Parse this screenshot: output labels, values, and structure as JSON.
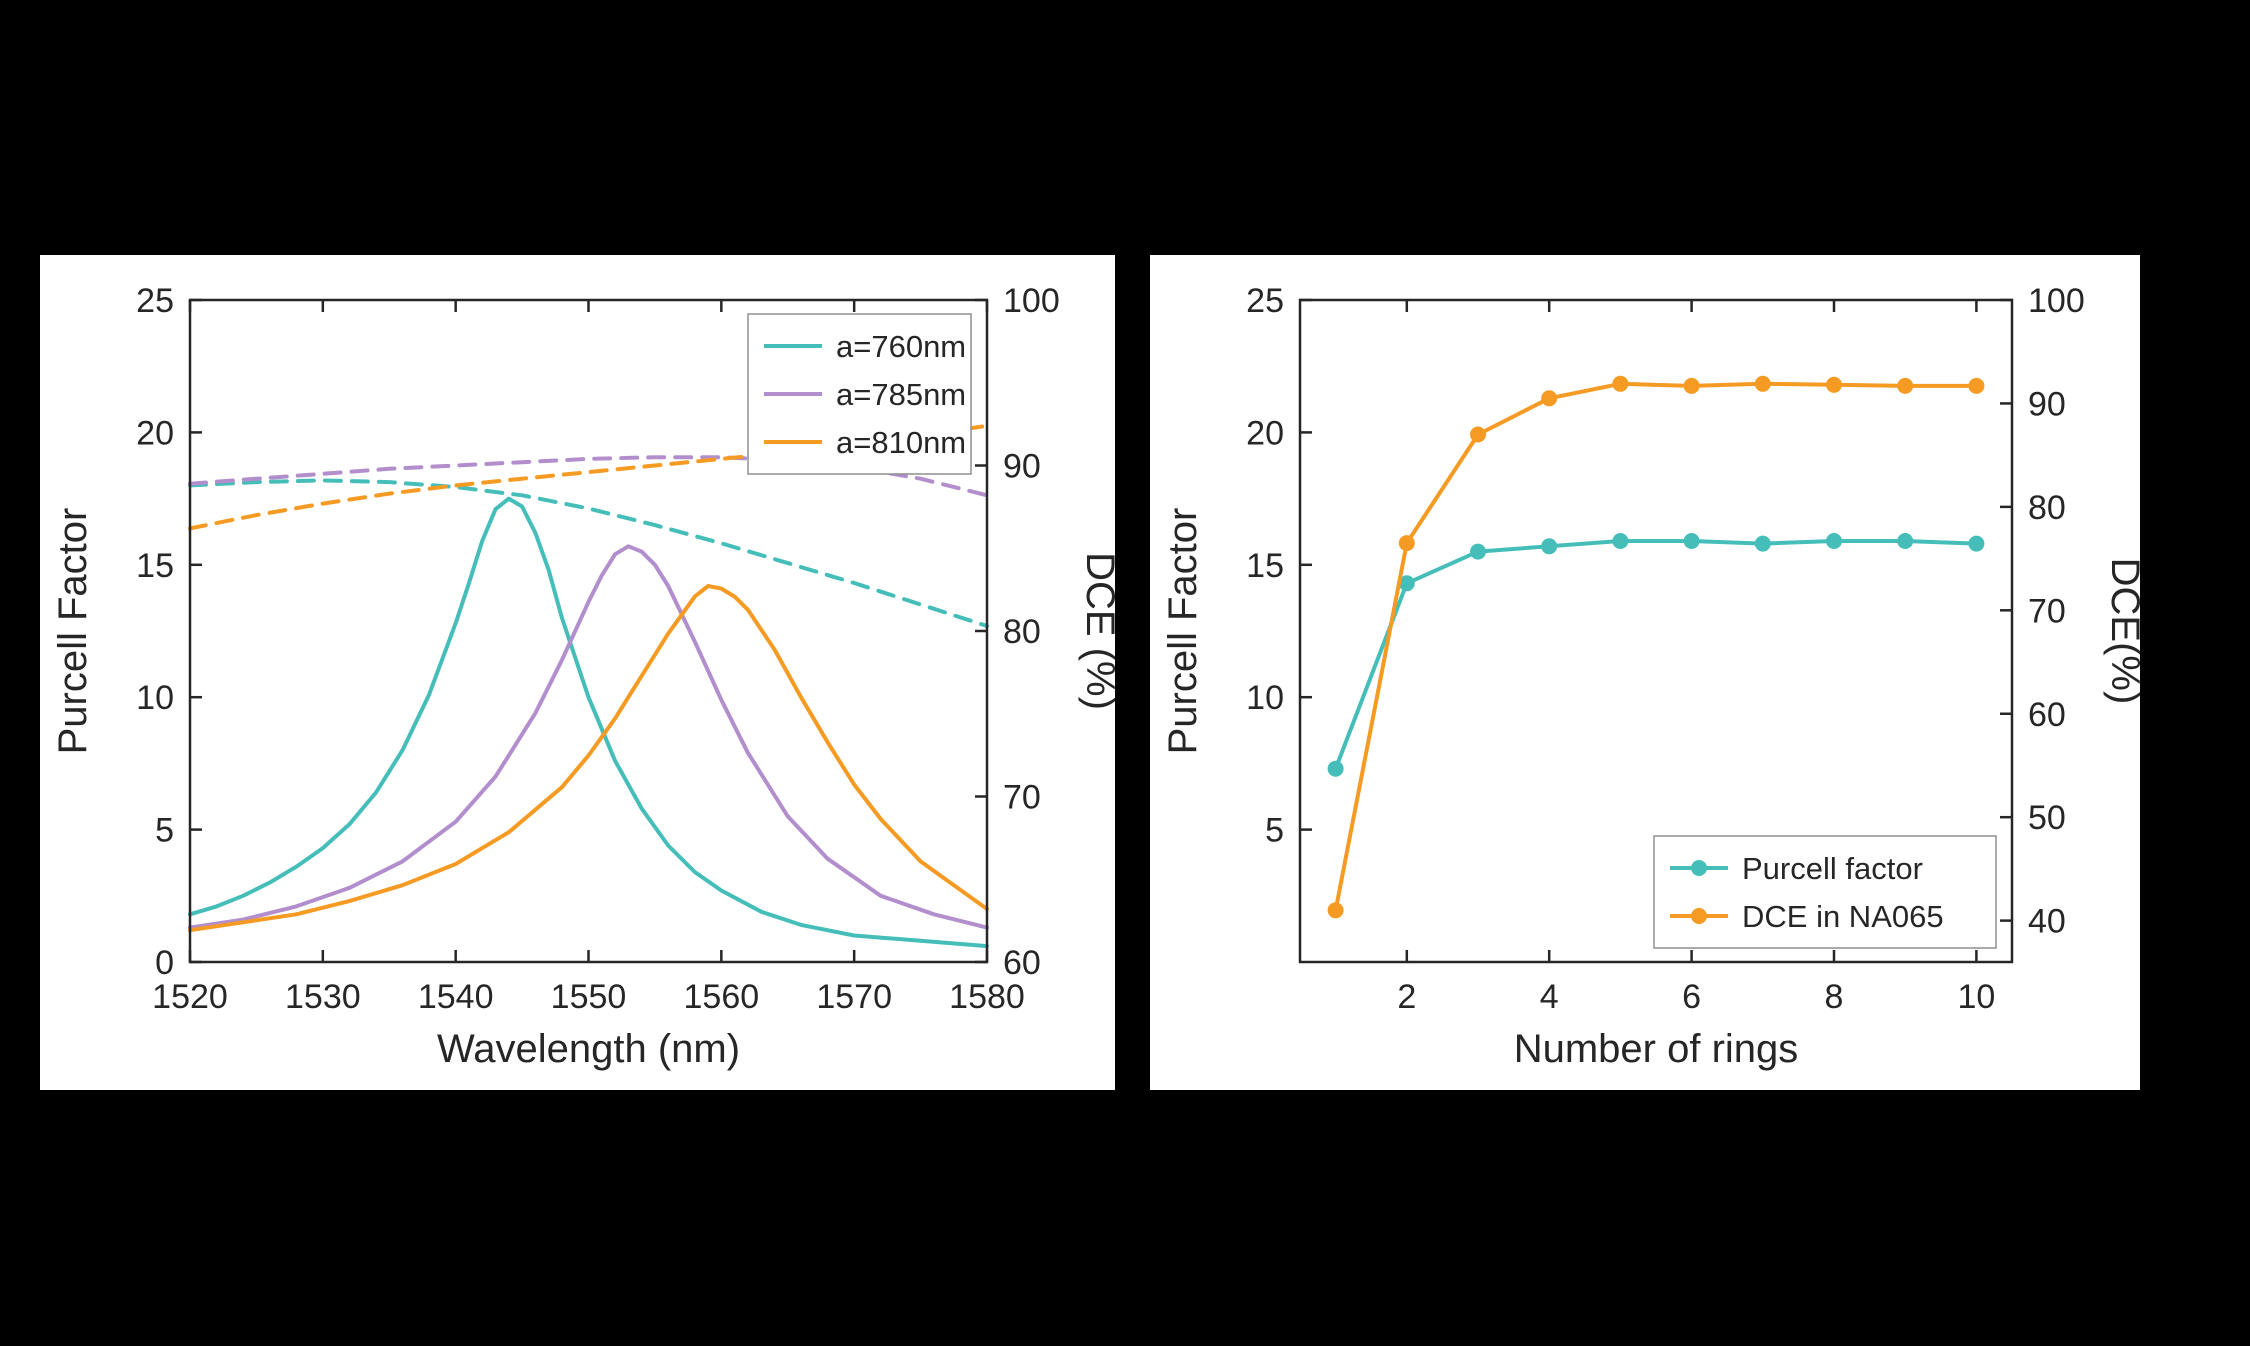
{
  "figure": {
    "background": "#000000",
    "panel_background": "#ffffff",
    "axis_color": "#262626",
    "text_color": "#262626",
    "series_colors": {
      "teal": "#45BEBA",
      "purple": "#B28ECD",
      "orange": "#F59B23"
    }
  },
  "chart_data": [
    {
      "id": "purcell-vs-wavelength",
      "type": "line",
      "title": "",
      "xlabel": "Wavelength (nm)",
      "ylabel": "Purcell Factor",
      "y2label": "DCE (%)",
      "xlim": [
        1520,
        1580
      ],
      "xticks": [
        1520,
        1530,
        1540,
        1550,
        1560,
        1570,
        1580
      ],
      "ylim": [
        0,
        25
      ],
      "yticks": [
        0,
        5,
        10,
        15,
        20,
        25
      ],
      "y2lim": [
        60,
        100
      ],
      "y2ticks": [
        60,
        70,
        80,
        90,
        100
      ],
      "grid": false,
      "legend": {
        "position": "top-right",
        "entries": [
          {
            "label": "a=760nm",
            "color": "#45BEBA",
            "style": "solid",
            "marker": false
          },
          {
            "label": "a=785nm",
            "color": "#B28ECD",
            "style": "solid",
            "marker": false
          },
          {
            "label": "a=810nm",
            "color": "#F59B23",
            "style": "solid",
            "marker": false
          }
        ]
      },
      "series": [
        {
          "name": "a=760nm Purcell factor",
          "axis": "y",
          "style": "solid",
          "marker": false,
          "color": "#45BEBA",
          "x": [
            1520,
            1522,
            1524,
            1526,
            1528,
            1530,
            1532,
            1534,
            1536,
            1538,
            1540,
            1541,
            1542,
            1543,
            1544,
            1545,
            1546,
            1547,
            1548,
            1550,
            1552,
            1554,
            1556,
            1558,
            1560,
            1563,
            1566,
            1570,
            1575,
            1580
          ],
          "y": [
            1.8,
            2.1,
            2.5,
            3.0,
            3.6,
            4.3,
            5.2,
            6.4,
            8.0,
            10.1,
            12.8,
            14.3,
            15.9,
            17.1,
            17.5,
            17.2,
            16.2,
            14.8,
            13.0,
            10.0,
            7.6,
            5.8,
            4.4,
            3.4,
            2.7,
            1.9,
            1.4,
            1.0,
            0.8,
            0.6
          ]
        },
        {
          "name": "a=785nm Purcell factor",
          "axis": "y",
          "style": "solid",
          "marker": false,
          "color": "#B28ECD",
          "x": [
            1520,
            1524,
            1528,
            1532,
            1536,
            1540,
            1543,
            1546,
            1548,
            1550,
            1551,
            1552,
            1553,
            1554,
            1555,
            1556,
            1558,
            1560,
            1562,
            1565,
            1568,
            1572,
            1576,
            1580
          ],
          "y": [
            1.3,
            1.6,
            2.1,
            2.8,
            3.8,
            5.3,
            7.0,
            9.4,
            11.4,
            13.6,
            14.6,
            15.4,
            15.7,
            15.5,
            15.0,
            14.2,
            12.1,
            9.9,
            7.9,
            5.5,
            3.9,
            2.5,
            1.8,
            1.3
          ]
        },
        {
          "name": "a=810nm Purcell factor",
          "axis": "y",
          "style": "solid",
          "marker": false,
          "color": "#F59B23",
          "x": [
            1520,
            1524,
            1528,
            1532,
            1536,
            1540,
            1544,
            1548,
            1550,
            1552,
            1554,
            1556,
            1557,
            1558,
            1559,
            1560,
            1561,
            1562,
            1564,
            1566,
            1568,
            1570,
            1572,
            1575,
            1580
          ],
          "y": [
            1.2,
            1.5,
            1.8,
            2.3,
            2.9,
            3.7,
            4.9,
            6.6,
            7.8,
            9.2,
            10.8,
            12.4,
            13.1,
            13.8,
            14.2,
            14.1,
            13.8,
            13.3,
            11.8,
            10.0,
            8.3,
            6.7,
            5.4,
            3.8,
            2.0
          ]
        },
        {
          "name": "a=760nm DCE",
          "axis": "y2",
          "style": "dashed",
          "marker": false,
          "color": "#45BEBA",
          "x": [
            1520,
            1525,
            1530,
            1535,
            1540,
            1545,
            1550,
            1555,
            1560,
            1565,
            1570,
            1575,
            1580
          ],
          "y": [
            88.8,
            89.0,
            89.1,
            89.0,
            88.7,
            88.2,
            87.4,
            86.4,
            85.3,
            84.1,
            82.9,
            81.6,
            80.3
          ]
        },
        {
          "name": "a=785nm DCE",
          "axis": "y2",
          "style": "dashed",
          "marker": false,
          "color": "#B28ECD",
          "x": [
            1520,
            1525,
            1530,
            1535,
            1540,
            1545,
            1550,
            1555,
            1560,
            1565,
            1570,
            1575,
            1580
          ],
          "y": [
            88.9,
            89.2,
            89.5,
            89.8,
            90.0,
            90.2,
            90.4,
            90.5,
            90.5,
            90.3,
            89.9,
            89.2,
            88.2
          ]
        },
        {
          "name": "a=810nm DCE",
          "axis": "y2",
          "style": "dashed",
          "marker": false,
          "color": "#F59B23",
          "x": [
            1520,
            1525,
            1530,
            1535,
            1540,
            1545,
            1550,
            1555,
            1560,
            1565,
            1570,
            1575,
            1580
          ],
          "y": [
            86.2,
            87.0,
            87.7,
            88.3,
            88.8,
            89.2,
            89.6,
            90.0,
            90.4,
            90.8,
            91.3,
            91.8,
            92.4
          ]
        }
      ]
    },
    {
      "id": "purcell-vs-number-of-rings",
      "type": "line",
      "title": "",
      "xlabel": "Number of rings",
      "ylabel": "Purcell Factor",
      "y2label": "DCE(%)",
      "xlim": [
        0.5,
        10.5
      ],
      "xticks": [
        2,
        4,
        6,
        8,
        10
      ],
      "ylim": [
        0,
        25
      ],
      "yticks": [
        5,
        10,
        15,
        20,
        25
      ],
      "y2lim": [
        36,
        100
      ],
      "y2ticks": [
        40,
        50,
        60,
        70,
        80,
        90,
        100
      ],
      "grid": false,
      "legend": {
        "position": "bottom-right",
        "entries": [
          {
            "label": "Purcell factor",
            "color": "#45BEBA",
            "style": "solid",
            "marker": true
          },
          {
            "label": "DCE in NA065",
            "color": "#F59B23",
            "style": "solid",
            "marker": true
          }
        ]
      },
      "series": [
        {
          "name": "Purcell factor",
          "axis": "y",
          "style": "solid",
          "marker": true,
          "color": "#45BEBA",
          "x": [
            1,
            2,
            3,
            4,
            5,
            6,
            7,
            8,
            9,
            10
          ],
          "y": [
            7.3,
            14.3,
            15.5,
            15.7,
            15.9,
            15.9,
            15.8,
            15.9,
            15.9,
            15.8
          ]
        },
        {
          "name": "DCE in NA065",
          "axis": "y2",
          "style": "solid",
          "marker": true,
          "color": "#F59B23",
          "x": [
            1,
            2,
            3,
            4,
            5,
            6,
            7,
            8,
            9,
            10
          ],
          "y": [
            41.0,
            76.5,
            87.0,
            90.5,
            91.9,
            91.7,
            91.9,
            91.8,
            91.7,
            91.7
          ]
        }
      ]
    }
  ]
}
